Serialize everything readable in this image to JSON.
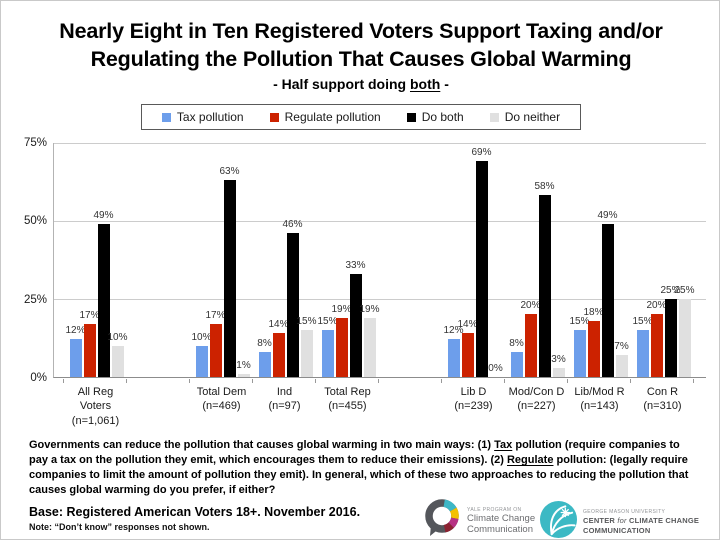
{
  "header": {
    "title_lines": [
      "Nearly Eight in Ten Registered Voters Support Taxing and/or",
      "Regulating the Pollution That Causes Global Warming"
    ],
    "subtitle_segments": [
      {
        "t": "- Half support doing "
      },
      {
        "t": "both",
        "u": true
      },
      {
        "t": " -"
      }
    ]
  },
  "chart_data": {
    "type": "bar",
    "title": "Nearly Eight in Ten Registered Voters Support Taxing and/or Regulating the Pollution That Causes Global Warming",
    "subtitle": "- Half support doing both -",
    "categories": [
      "All Reg\nVoters\n(n=1,061)",
      "Total Dem\n(n=469)",
      "Ind\n(n=97)",
      "Total Rep\n(n=455)",
      "Lib D\n(n=239)",
      "Mod/Con D\n(n=227)",
      "Lib/Mod R\n(n=143)",
      "Con R\n(n=310)"
    ],
    "series": [
      {
        "name": "Tax pollution",
        "color": "#6d9eeb",
        "values": [
          12,
          10,
          8,
          15,
          12,
          8,
          15,
          15
        ]
      },
      {
        "name": "Regulate pollution",
        "color": "#cc2200",
        "values": [
          17,
          17,
          14,
          19,
          14,
          20,
          18,
          20
        ]
      },
      {
        "name": "Do both",
        "color": "#000000",
        "values": [
          49,
          63,
          46,
          33,
          69,
          58,
          49,
          25
        ]
      },
      {
        "name": "Do neither",
        "color": "#e0e0e0",
        "values": [
          10,
          1,
          15,
          19,
          0,
          3,
          7,
          25
        ]
      }
    ],
    "value_suffix": "%",
    "value_labels_shown": true,
    "ylim": [
      0,
      75
    ],
    "yticks": [
      "0%",
      "25%",
      "50%",
      "75%"
    ],
    "grid": true,
    "legend_position": "top",
    "layout": {
      "spacer_after_category_index": [
        0,
        3
      ]
    }
  },
  "footer": {
    "question_segments": [
      {
        "t": "Governments can reduce the pollution that causes global warming in two main ways: (1) "
      },
      {
        "t": "Tax",
        "u": true
      },
      {
        "t": " pollution (require companies to pay a tax on the pollution they emit, which encourages them to reduce their emissions). (2) "
      },
      {
        "t": "Regulate",
        "u": true
      },
      {
        "t": " pollution: (legally require companies to limit the amount of pollution they emit). In general, which of these two approaches to reducing the pollution that causes global warming do you prefer, if either?"
      }
    ],
    "base": "Base: Registered American Voters 18+. November 2016.",
    "note": "Note: “Don’t know” responses not shown."
  },
  "logos": {
    "yale": {
      "line1": "YALE PROGRAM ON",
      "line2": "Climate Change",
      "line3": "Communication"
    },
    "gmu": {
      "line1": "GEORGE MASON UNIVERSITY",
      "line2_segments": [
        {
          "t": "CENTER "
        },
        {
          "t": "for",
          "i": true
        },
        {
          "t": " CLIMATE CHANGE"
        }
      ],
      "line3": "COMMUNICATION"
    }
  }
}
